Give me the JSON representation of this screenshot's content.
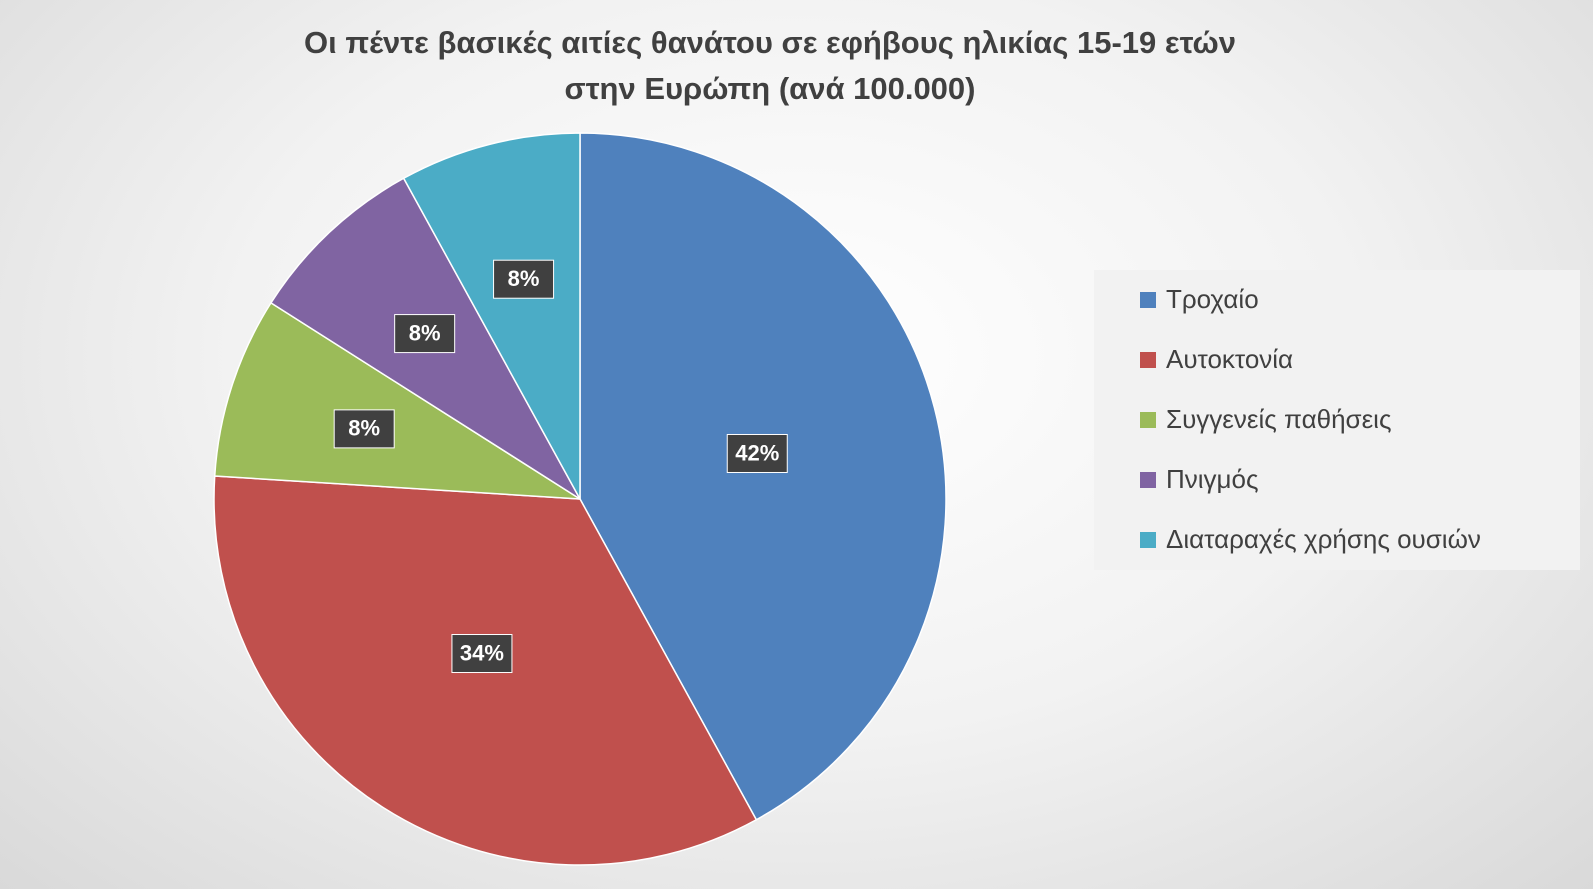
{
  "chart_data": {
    "type": "pie",
    "title": "Οι πέντε βασικές αιτίες θανάτου σε εφήβους ηλικίας 15-19 ετών στην Ευρώπη (ανά 100.000)",
    "categories": [
      "Τροχαίο",
      "Αυτοκτονία",
      "Συγγενείς παθήσεις",
      "Πνιγμός",
      "Διαταραχές χρήσης ουσιών"
    ],
    "values": [
      42,
      34,
      8,
      8,
      8
    ],
    "value_labels": [
      "42%",
      "34%",
      "8%",
      "8%",
      "8%"
    ],
    "colors": [
      "#4f81bd",
      "#c0504d",
      "#9bbb59",
      "#8064a2",
      "#4bacc6"
    ],
    "legend": "right"
  }
}
